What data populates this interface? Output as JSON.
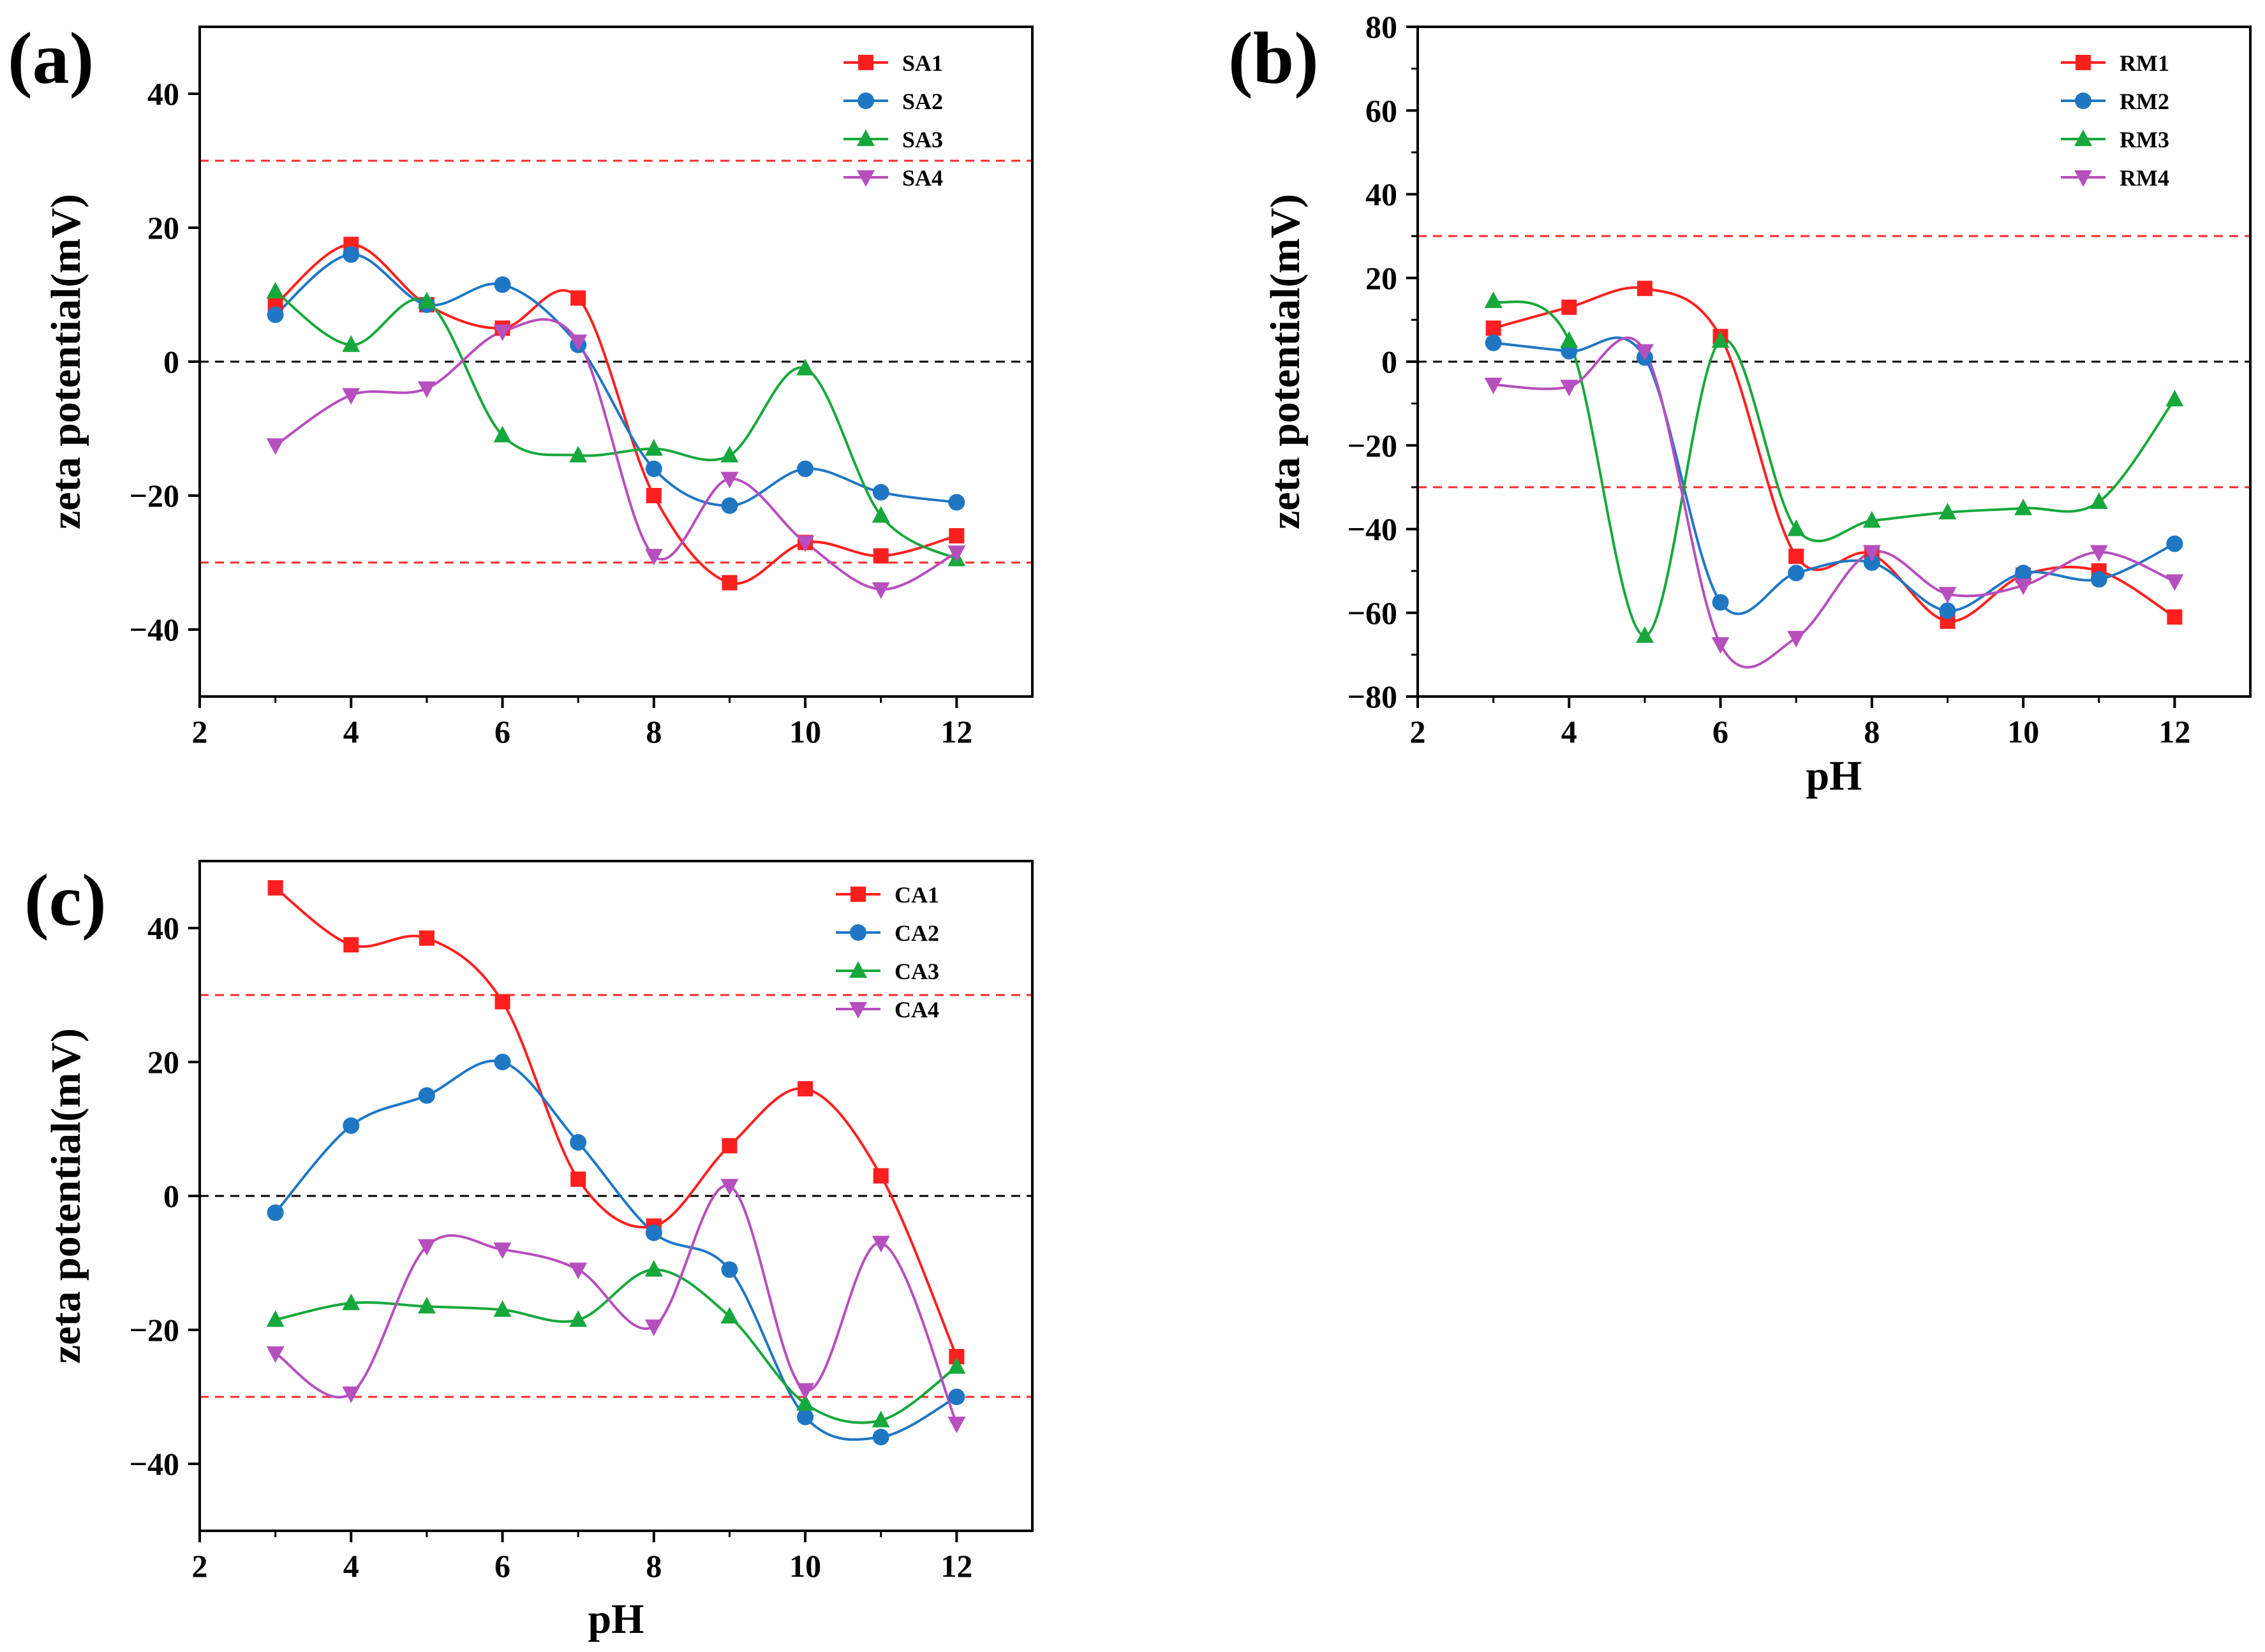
{
  "chart_data": [
    {
      "panel_label": "(a)",
      "type": "line",
      "xlabel": "",
      "ylabel": "zeta potential(mV)",
      "xlim": [
        2,
        13
      ],
      "ylim": [
        -50,
        50
      ],
      "x_ticks": [
        2,
        4,
        6,
        8,
        10,
        12
      ],
      "y_ticks": [
        -40,
        -20,
        0,
        20,
        40
      ],
      "x_tick_labels": [
        "2",
        "4",
        "6",
        "8",
        "10",
        "12"
      ],
      "y_tick_labels": [
        "−40",
        "−20",
        "0",
        "20",
        "40"
      ],
      "reference_lines": [
        {
          "y": 30,
          "color": "#ff2a2a"
        },
        {
          "y": 0,
          "color": "#000000"
        },
        {
          "y": -30,
          "color": "#ff2a2a"
        }
      ],
      "legend_position": "top-right",
      "series": [
        {
          "name": "SA1",
          "color": "#ff1f1f",
          "marker": "square",
          "x": [
            3,
            4,
            5,
            6,
            7,
            8,
            9,
            10,
            11,
            12
          ],
          "values": [
            8.5,
            17.5,
            8.5,
            5.0,
            9.5,
            -20.0,
            -33.0,
            -27.0,
            -29.0,
            -26.0
          ]
        },
        {
          "name": "SA2",
          "color": "#1f77c4",
          "marker": "circle",
          "x": [
            3,
            4,
            5,
            6,
            7,
            8,
            9,
            10,
            11,
            12
          ],
          "values": [
            7.0,
            16.0,
            8.5,
            11.5,
            2.5,
            -16.0,
            -21.5,
            -16.0,
            -19.5,
            -21.0
          ]
        },
        {
          "name": "SA3",
          "color": "#16a83c",
          "marker": "triangle-up",
          "x": [
            3,
            4,
            5,
            6,
            7,
            8,
            9,
            10,
            11,
            12
          ],
          "values": [
            10.5,
            2.5,
            9.0,
            -11.0,
            -14.0,
            -13.0,
            -14.0,
            -1.0,
            -23.0,
            -29.5
          ]
        },
        {
          "name": "SA4",
          "color": "#b64fbe",
          "marker": "triangle-down",
          "x": [
            3,
            4,
            5,
            6,
            7,
            8,
            9,
            10,
            11,
            12
          ],
          "values": [
            -12.5,
            -5.0,
            -4.0,
            4.5,
            3.0,
            -29.0,
            -17.5,
            -27.0,
            -34.0,
            -28.5
          ]
        }
      ]
    },
    {
      "panel_label": "(b)",
      "type": "line",
      "xlabel": "pH",
      "ylabel": "zeta potential(mV)",
      "xlim": [
        2,
        13
      ],
      "ylim": [
        -80,
        80
      ],
      "x_ticks": [
        2,
        4,
        6,
        8,
        10,
        12
      ],
      "y_ticks": [
        -80,
        -60,
        -40,
        -20,
        0,
        20,
        40,
        60,
        80
      ],
      "x_tick_labels": [
        "2",
        "4",
        "6",
        "8",
        "10",
        "12"
      ],
      "y_tick_labels": [
        "−80",
        "−60",
        "−40",
        "−20",
        "0",
        "20",
        "40",
        "60",
        "80"
      ],
      "reference_lines": [
        {
          "y": 30,
          "color": "#ff2a2a"
        },
        {
          "y": 0,
          "color": "#000000"
        },
        {
          "y": -30,
          "color": "#ff2a2a"
        }
      ],
      "legend_position": "top-right",
      "series": [
        {
          "name": "RM1",
          "color": "#ff1f1f",
          "marker": "square",
          "x": [
            3,
            4,
            5,
            6,
            7,
            8,
            9,
            10,
            11,
            12
          ],
          "values": [
            8.0,
            13.0,
            17.5,
            6.0,
            -46.5,
            -46.0,
            -62.0,
            -51.0,
            -50.0,
            -61.0
          ]
        },
        {
          "name": "RM2",
          "color": "#1f77c4",
          "marker": "circle",
          "x": [
            3,
            4,
            5,
            6,
            7,
            8,
            9,
            10,
            11,
            12
          ],
          "values": [
            4.5,
            2.5,
            1.0,
            -57.5,
            -50.5,
            -48.0,
            -59.5,
            -50.5,
            -52.0,
            -43.5
          ]
        },
        {
          "name": "RM3",
          "color": "#16a83c",
          "marker": "triangle-up",
          "x": [
            3,
            4,
            5,
            6,
            7,
            8,
            9,
            10,
            11,
            12
          ],
          "values": [
            14.5,
            5.0,
            -65.5,
            5.0,
            -40.0,
            -38.0,
            -36.0,
            -35.0,
            -33.5,
            -9.0
          ]
        },
        {
          "name": "RM4",
          "color": "#b64fbe",
          "marker": "triangle-down",
          "x": [
            3,
            4,
            5,
            6,
            7,
            8,
            9,
            10,
            11,
            12
          ],
          "values": [
            -5.5,
            -6.0,
            2.5,
            -67.5,
            -66.0,
            -45.5,
            -55.5,
            -53.5,
            -45.5,
            -52.5
          ]
        }
      ]
    },
    {
      "panel_label": "(c)",
      "type": "line",
      "xlabel": "pH",
      "ylabel": "zeta potential(mV)",
      "xlim": [
        2,
        13
      ],
      "ylim": [
        -50,
        50
      ],
      "x_ticks": [
        2,
        4,
        6,
        8,
        10,
        12
      ],
      "y_ticks": [
        -40,
        -20,
        0,
        20,
        40
      ],
      "x_tick_labels": [
        "2",
        "4",
        "6",
        "8",
        "10",
        "12"
      ],
      "y_tick_labels": [
        "−40",
        "−20",
        "0",
        "20",
        "40"
      ],
      "reference_lines": [
        {
          "y": 30,
          "color": "#ff2a2a"
        },
        {
          "y": 0,
          "color": "#000000"
        },
        {
          "y": -30,
          "color": "#ff2a2a"
        }
      ],
      "legend_position": "top-right",
      "series": [
        {
          "name": "CA1",
          "color": "#ff1f1f",
          "marker": "square",
          "x": [
            3,
            4,
            5,
            6,
            7,
            8,
            9,
            10,
            11,
            12
          ],
          "values": [
            46.0,
            37.5,
            38.5,
            29.0,
            2.5,
            -4.5,
            7.5,
            16.0,
            3.0,
            -24.0
          ]
        },
        {
          "name": "CA2",
          "color": "#1f77c4",
          "marker": "circle",
          "x": [
            3,
            4,
            5,
            6,
            7,
            8,
            9,
            10,
            11,
            12
          ],
          "values": [
            -2.5,
            10.5,
            15.0,
            20.0,
            8.0,
            -5.5,
            -11.0,
            -33.0,
            -36.0,
            -30.0
          ]
        },
        {
          "name": "CA3",
          "color": "#16a83c",
          "marker": "triangle-up",
          "x": [
            3,
            4,
            5,
            6,
            7,
            8,
            9,
            10,
            11,
            12
          ],
          "values": [
            -18.5,
            -16.0,
            -16.5,
            -17.0,
            -18.5,
            -11.0,
            -18.0,
            -31.0,
            -33.5,
            -25.5
          ]
        },
        {
          "name": "CA4",
          "color": "#b64fbe",
          "marker": "triangle-down",
          "x": [
            3,
            4,
            5,
            6,
            7,
            8,
            9,
            10,
            11,
            12
          ],
          "values": [
            -23.5,
            -29.5,
            -7.5,
            -8.0,
            -11.0,
            -19.5,
            1.5,
            -29.0,
            -7.0,
            -34.0
          ]
        }
      ]
    }
  ]
}
